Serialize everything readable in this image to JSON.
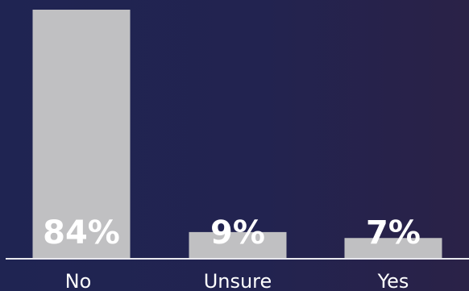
{
  "chart_data": {
    "type": "bar",
    "categories": [
      "No",
      "Unsure",
      "Yes"
    ],
    "values": [
      84,
      9,
      7
    ],
    "value_labels": [
      "84%",
      "9%",
      "7%"
    ],
    "ylim": [
      0,
      84
    ],
    "grid": false,
    "title": "",
    "xlabel": "",
    "ylabel": ""
  },
  "colors": {
    "bar": "#c0c0c2",
    "baseline": "#e8e8ee",
    "text": "#ffffff",
    "background": "#222350"
  }
}
